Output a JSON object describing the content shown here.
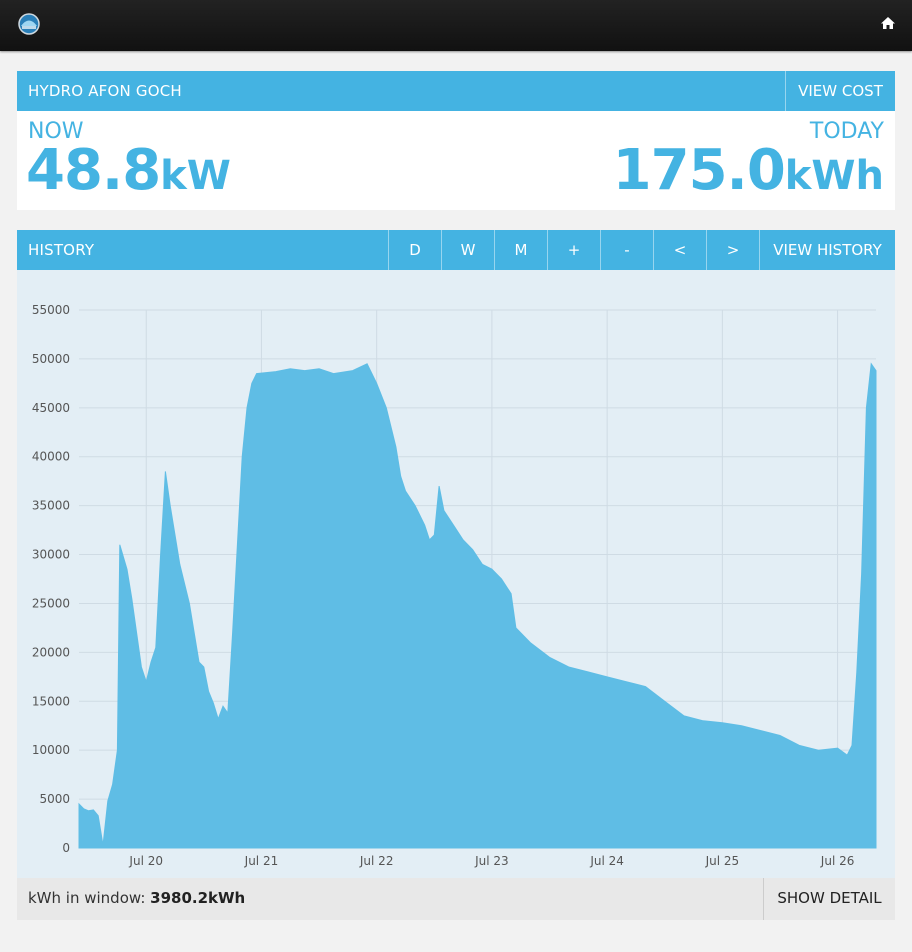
{
  "header": {
    "logo_icon": "emoncms-logo-icon",
    "home_icon": "home-icon"
  },
  "feed": {
    "title": "HYDRO AFON GOCH",
    "view_cost": "VIEW COST",
    "now_label": "NOW",
    "now_value": "48.8",
    "now_unit": "kW",
    "today_label": "TODAY",
    "today_value": "175.0",
    "today_unit": "kWh"
  },
  "history": {
    "title": "HISTORY",
    "buttons": [
      "D",
      "W",
      "M",
      "+",
      "-",
      "<",
      ">"
    ],
    "view_history": "VIEW HISTORY"
  },
  "footer": {
    "window_label": "kWh in window: ",
    "window_value": "3980.2kWh",
    "show_detail": "SHOW DETAIL"
  },
  "colors": {
    "accent": "#44b3e2",
    "series": "#5fbde5",
    "plot_bg": "#e3eef5"
  },
  "chart_data": {
    "type": "area",
    "ylim": [
      0,
      55000
    ],
    "yticks": [
      0,
      5000,
      10000,
      15000,
      20000,
      25000,
      30000,
      35000,
      40000,
      45000,
      50000,
      55000
    ],
    "xlim": [
      "2023-07-19T10:00",
      "2023-07-26T08:00"
    ],
    "xticks": [
      {
        "t": "2023-07-20T00:00",
        "label": "Jul 20"
      },
      {
        "t": "2023-07-21T00:00",
        "label": "Jul 21"
      },
      {
        "t": "2023-07-22T00:00",
        "label": "Jul 22"
      },
      {
        "t": "2023-07-23T00:00",
        "label": "Jul 23"
      },
      {
        "t": "2023-07-24T00:00",
        "label": "Jul 24"
      },
      {
        "t": "2023-07-25T00:00",
        "label": "Jul 25"
      },
      {
        "t": "2023-07-26T00:00",
        "label": "Jul 26"
      }
    ],
    "grid": true,
    "series": [
      {
        "points": [
          [
            "2023-07-19T10:00",
            4500
          ],
          [
            "2023-07-19T11:00",
            4000
          ],
          [
            "2023-07-19T12:00",
            3800
          ],
          [
            "2023-07-19T13:00",
            3900
          ],
          [
            "2023-07-19T14:00",
            3300
          ],
          [
            "2023-07-19T15:00",
            300
          ],
          [
            "2023-07-19T16:00",
            4800
          ],
          [
            "2023-07-19T17:00",
            6500
          ],
          [
            "2023-07-19T18:00",
            10000
          ],
          [
            "2023-07-19T18:30",
            31000
          ],
          [
            "2023-07-19T20:00",
            28500
          ],
          [
            "2023-07-19T21:00",
            25500
          ],
          [
            "2023-07-19T22:00",
            22000
          ],
          [
            "2023-07-19T23:00",
            18500
          ],
          [
            "2023-07-20T00:00",
            17000
          ],
          [
            "2023-07-20T01:00",
            19000
          ],
          [
            "2023-07-20T02:00",
            20500
          ],
          [
            "2023-07-20T03:00",
            30000
          ],
          [
            "2023-07-20T04:00",
            38500
          ],
          [
            "2023-07-20T05:00",
            35000
          ],
          [
            "2023-07-20T06:00",
            32000
          ],
          [
            "2023-07-20T07:00",
            29000
          ],
          [
            "2023-07-20T08:00",
            27000
          ],
          [
            "2023-07-20T09:00",
            25000
          ],
          [
            "2023-07-20T10:00",
            22000
          ],
          [
            "2023-07-20T11:00",
            19000
          ],
          [
            "2023-07-20T12:00",
            18500
          ],
          [
            "2023-07-20T13:00",
            16000
          ],
          [
            "2023-07-20T14:00",
            14800
          ],
          [
            "2023-07-20T15:00",
            13200
          ],
          [
            "2023-07-20T16:00",
            14500
          ],
          [
            "2023-07-20T17:00",
            13800
          ],
          [
            "2023-07-20T18:00",
            22000
          ],
          [
            "2023-07-20T19:00",
            31000
          ],
          [
            "2023-07-20T20:00",
            40000
          ],
          [
            "2023-07-20T21:00",
            45000
          ],
          [
            "2023-07-20T22:00",
            47500
          ],
          [
            "2023-07-20T23:00",
            48500
          ],
          [
            "2023-07-21T03:00",
            48700
          ],
          [
            "2023-07-21T06:00",
            49000
          ],
          [
            "2023-07-21T09:00",
            48800
          ],
          [
            "2023-07-21T12:00",
            49000
          ],
          [
            "2023-07-21T15:00",
            48500
          ],
          [
            "2023-07-21T19:00",
            48800
          ],
          [
            "2023-07-21T22:00",
            49500
          ],
          [
            "2023-07-22T00:00",
            47500
          ],
          [
            "2023-07-22T02:00",
            45000
          ],
          [
            "2023-07-22T04:00",
            41000
          ],
          [
            "2023-07-22T05:00",
            38000
          ],
          [
            "2023-07-22T06:00",
            36500
          ],
          [
            "2023-07-22T08:00",
            35000
          ],
          [
            "2023-07-22T10:00",
            33000
          ],
          [
            "2023-07-22T11:00",
            31500
          ],
          [
            "2023-07-22T12:00",
            32000
          ],
          [
            "2023-07-22T13:00",
            37000
          ],
          [
            "2023-07-22T14:00",
            34500
          ],
          [
            "2023-07-22T16:00",
            33000
          ],
          [
            "2023-07-22T18:00",
            31500
          ],
          [
            "2023-07-22T20:00",
            30500
          ],
          [
            "2023-07-22T22:00",
            29000
          ],
          [
            "2023-07-23T00:00",
            28500
          ],
          [
            "2023-07-23T02:00",
            27500
          ],
          [
            "2023-07-23T04:00",
            26000
          ],
          [
            "2023-07-23T05:00",
            22500
          ],
          [
            "2023-07-23T08:00",
            21000
          ],
          [
            "2023-07-23T12:00",
            19500
          ],
          [
            "2023-07-23T16:00",
            18500
          ],
          [
            "2023-07-23T20:00",
            18000
          ],
          [
            "2023-07-24T00:00",
            17500
          ],
          [
            "2023-07-24T04:00",
            17000
          ],
          [
            "2023-07-24T08:00",
            16500
          ],
          [
            "2023-07-24T12:00",
            15000
          ],
          [
            "2023-07-24T16:00",
            13500
          ],
          [
            "2023-07-24T20:00",
            13000
          ],
          [
            "2023-07-25T00:00",
            12800
          ],
          [
            "2023-07-25T04:00",
            12500
          ],
          [
            "2023-07-25T08:00",
            12000
          ],
          [
            "2023-07-25T12:00",
            11500
          ],
          [
            "2023-07-25T16:00",
            10500
          ],
          [
            "2023-07-25T20:00",
            10000
          ],
          [
            "2023-07-26T00:00",
            10200
          ],
          [
            "2023-07-26T02:00",
            9500
          ],
          [
            "2023-07-26T03:00",
            10500
          ],
          [
            "2023-07-26T04:00",
            18000
          ],
          [
            "2023-07-26T05:00",
            28000
          ],
          [
            "2023-07-26T06:00",
            45000
          ],
          [
            "2023-07-26T07:00",
            49500
          ],
          [
            "2023-07-26T08:00",
            48800
          ]
        ]
      }
    ]
  }
}
